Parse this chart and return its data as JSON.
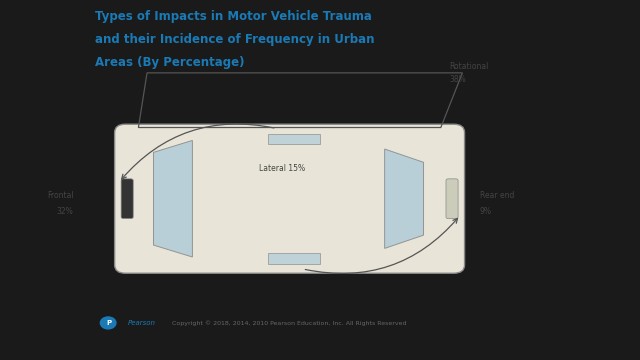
{
  "title_line1": "Types of Impacts in Motor Vehicle Trauma",
  "title_line2": "and their Incidence of Frequency in Urban",
  "title_line3": "Areas (By Percentage)",
  "title_color": "#1a7ab5",
  "bg_color": "#ffffff",
  "outer_bg": "#1a1a1a",
  "labels": {
    "rotational": "Rotational\n38%",
    "lateral": "Lateral 15%",
    "frontal": "Frontal\n32%",
    "rear_end": "Rear end\n9%"
  },
  "footer": "Copyright © 2018, 2014, 2010 Pearson Education, Inc. All Rights Reserved",
  "car_body_color": "#e8e4d8",
  "car_window_color": "#b0ccd8",
  "car_outline_color": "#888888",
  "arrow_color": "#555555",
  "label_color": "#444444"
}
